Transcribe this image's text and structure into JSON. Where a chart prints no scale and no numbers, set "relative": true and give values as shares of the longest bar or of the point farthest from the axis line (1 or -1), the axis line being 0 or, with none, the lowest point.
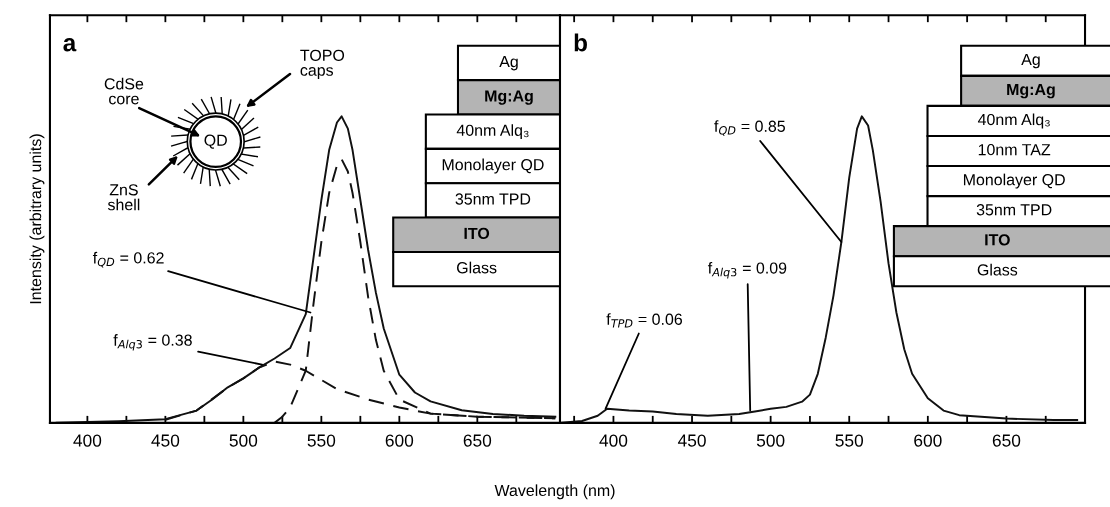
{
  "chart_data": [
    {
      "type": "line",
      "relative": true,
      "xlabel": "Wavelength (nm)",
      "ylabel": "Intensity (arbitrary units)",
      "xlim": [
        376,
        703
      ],
      "xticks": [
        400,
        {
          "value": 425,
          "label": null
        },
        450,
        {
          "value": 475,
          "label": null
        },
        500,
        {
          "value": 525,
          "label": null
        },
        550,
        {
          "value": 575,
          "label": null
        },
        600,
        {
          "value": 625,
          "label": null
        },
        650,
        {
          "value": 675,
          "label": null
        }
      ],
      "series": [
        {
          "color": "#111111",
          "line_style": "solid",
          "x": [
            380,
            420,
            450,
            470,
            480,
            490,
            500,
            510,
            520,
            530,
            540,
            545,
            550,
            555,
            560,
            563,
            567,
            570,
            575,
            580,
            585,
            590,
            600,
            610,
            620,
            640,
            660,
            680,
            700
          ],
          "values": [
            0,
            0.005,
            0.012,
            0.04,
            0.076,
            0.116,
            0.145,
            0.18,
            0.21,
            0.244,
            0.355,
            0.54,
            0.727,
            0.89,
            0.98,
            1.0,
            0.96,
            0.89,
            0.727,
            0.564,
            0.424,
            0.308,
            0.157,
            0.099,
            0.07,
            0.041,
            0.029,
            0.023,
            0.02
          ]
        },
        {
          "color": "#111111",
          "line_style": "dashed",
          "x": [
            520,
            525,
            530,
            540,
            545,
            550,
            555,
            560,
            563,
            567,
            570,
            575,
            580,
            585,
            590,
            600,
            620,
            650,
            700
          ],
          "values": [
            0,
            0.02,
            0.05,
            0.17,
            0.39,
            0.59,
            0.75,
            0.84,
            0.86,
            0.82,
            0.75,
            0.59,
            0.41,
            0.27,
            0.17,
            0.076,
            0.03,
            0.02,
            0.015
          ]
        },
        {
          "color": "#111111",
          "line_style": "dashed",
          "x": [
            450,
            470,
            490,
            500,
            510,
            520,
            530,
            540,
            550,
            560,
            580,
            600,
            620,
            650,
            700
          ],
          "values": [
            0.01,
            0.04,
            0.115,
            0.145,
            0.18,
            0.2,
            0.19,
            0.17,
            0.14,
            0.11,
            0.076,
            0.05,
            0.03,
            0.02,
            0.015
          ]
        }
      ],
      "annotations": [
        "a",
        "Ag",
        "Mg:Ag",
        "40nm Alq₃",
        "Monolayer QD",
        "35nm TPD",
        "ITO",
        "Glass",
        "CdSe\ncore",
        "TOPO\ncaps",
        "ZnS\nshell",
        "QD",
        {
          "text": "f$_{QD}$ = 0.62",
          "x": 543,
          "y": 0.36
        },
        {
          "text": "f$_{Alq3}$ = 0.38",
          "x": 512,
          "y": 0.19
        }
      ]
    },
    {
      "type": "line",
      "relative": true,
      "xlim": [
        366,
        700
      ],
      "xticks": [
        {
          "value": 375,
          "label": null
        },
        400,
        {
          "value": 425,
          "label": null
        },
        450,
        {
          "value": 475,
          "label": null
        },
        500,
        {
          "value": 525,
          "label": null
        },
        550,
        {
          "value": 575,
          "label": null
        },
        600,
        {
          "value": 625,
          "label": null
        },
        650,
        {
          "value": 675,
          "label": null
        }
      ],
      "series": [
        {
          "color": "#111111",
          "line_style": "solid",
          "x": [
            367,
            380,
            390,
            396,
            410,
            425,
            440,
            460,
            480,
            490,
            500,
            510,
            520,
            525,
            530,
            535,
            540,
            545,
            550,
            555,
            558,
            562,
            565,
            570,
            575,
            580,
            585,
            590,
            600,
            610,
            620,
            650,
            680,
            695
          ],
          "values": [
            0,
            0.006,
            0.023,
            0.046,
            0.04,
            0.037,
            0.029,
            0.023,
            0.029,
            0.037,
            0.046,
            0.052,
            0.069,
            0.092,
            0.16,
            0.277,
            0.416,
            0.59,
            0.8,
            0.96,
            1.0,
            0.97,
            0.89,
            0.72,
            0.52,
            0.36,
            0.24,
            0.16,
            0.08,
            0.04,
            0.025,
            0.014,
            0.009,
            0.009
          ]
        }
      ],
      "annotations": [
        "b",
        "Ag",
        "Mg:Ag",
        "40nm Alq₃",
        "10nm TAZ",
        "Monolayer QD",
        "35nm TPD",
        "ITO",
        "Glass",
        {
          "text": "f$_{QD}$ = 0.85",
          "x": 545,
          "y": 0.59
        },
        {
          "text": "f$_{Alq3}$ = 0.09",
          "x": 487,
          "y": 0.04
        },
        {
          "text": "f$_{TPD}$ = 0.06",
          "x": 395,
          "y": 0.046
        }
      ]
    }
  ]
}
